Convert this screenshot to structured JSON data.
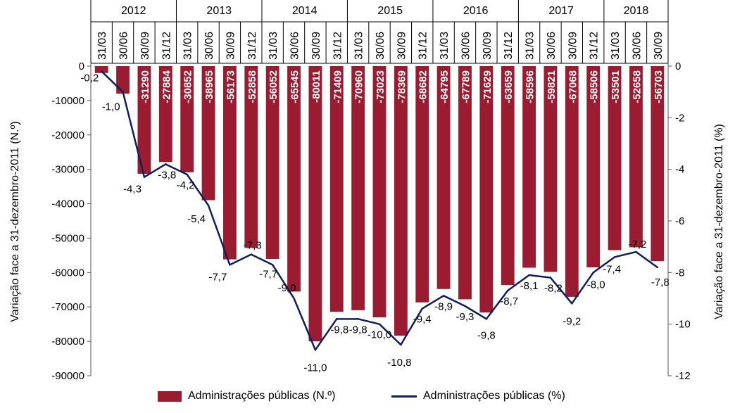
{
  "chart_data": {
    "type": "bar",
    "combo": "bar+line",
    "years": [
      "2012",
      "2013",
      "2014",
      "2015",
      "2016",
      "2017",
      "2018"
    ],
    "categories": [
      "31/03",
      "30/06",
      "30/09",
      "31/12",
      "31/03",
      "30/06",
      "30/09",
      "31/12",
      "31/03",
      "30/06",
      "30/09",
      "31/12",
      "31/03",
      "30/06",
      "30/09",
      "31/12",
      "31/03",
      "30/06",
      "30/09",
      "31/12",
      "31/03",
      "30/06",
      "30/09",
      "31/12",
      "31/03",
      "30/06",
      "30/09"
    ],
    "series": [
      {
        "name": "Administrações públicas (N.º)",
        "type": "bar",
        "axis": "left",
        "color": "#9B1B30",
        "values": [
          -2000,
          -8000,
          -31290,
          -27884,
          -30852,
          -38965,
          -56173,
          -52858,
          -56052,
          -65545,
          -80011,
          -71409,
          -70960,
          -73023,
          -78369,
          -68682,
          -64795,
          -67789,
          -71629,
          -63659,
          -58596,
          -59821,
          -67068,
          -58506,
          -53501,
          -52658,
          -56703
        ],
        "labels": [
          "",
          "",
          "-31290",
          "-27884",
          "-30852",
          "-38965",
          "-56173",
          "-52858",
          "-56052",
          "-65545",
          "-80011",
          "-71409",
          "-70960",
          "-73023",
          "-78369",
          "-68682",
          "-64795",
          "-67789",
          "-71629",
          "-63659",
          "-58596",
          "-59821",
          "-67068",
          "-58506",
          "-53501",
          "-52658",
          "-56703"
        ]
      },
      {
        "name": "Administrações públicas (%)",
        "type": "line",
        "axis": "right",
        "color": "#0E1F5B",
        "values": [
          -0.2,
          -1.0,
          -4.3,
          -3.8,
          -4.2,
          -5.4,
          -7.7,
          -7.3,
          -7.7,
          -9.0,
          -11.0,
          -9.8,
          -9.8,
          -10.0,
          -10.8,
          -9.4,
          -8.9,
          -9.3,
          -9.8,
          -8.7,
          -8.1,
          -8.2,
          -9.2,
          -8.0,
          -7.4,
          -7.2,
          -7.8
        ],
        "labels": [
          "-0,2",
          "-1,0",
          "-4,3",
          "-3,8",
          "-4,2",
          "-5,4",
          "-7,7",
          "-7,3",
          "-7,7",
          "-9,0",
          "-11,0",
          "-9,8",
          "-9,8",
          "-10,0",
          "-10,8",
          "-9,4",
          "-8,9",
          "-9,3",
          "-9,8",
          "-8,7",
          "-8,1",
          "-8,2",
          "-9,2",
          "-8,0",
          "-7,4",
          "-7,2",
          "-7,8"
        ]
      }
    ],
    "left_axis": {
      "label": "Variação  face a 31-dezembro-2011 (N.º)",
      "ylim": [
        -90000,
        0
      ],
      "ticks": [
        "0",
        "-10000",
        "-20000",
        "-30000",
        "-40000",
        "-50000",
        "-60000",
        "-70000",
        "-80000",
        "-90000"
      ]
    },
    "right_axis": {
      "label": "Variação face a 31-dezembro-2011 (%)",
      "ylim": [
        -12,
        0
      ],
      "ticks": [
        "0",
        "-2",
        "-4",
        "-6",
        "-8",
        "-10",
        "-12"
      ]
    },
    "grid": false,
    "legend": "bottom"
  }
}
